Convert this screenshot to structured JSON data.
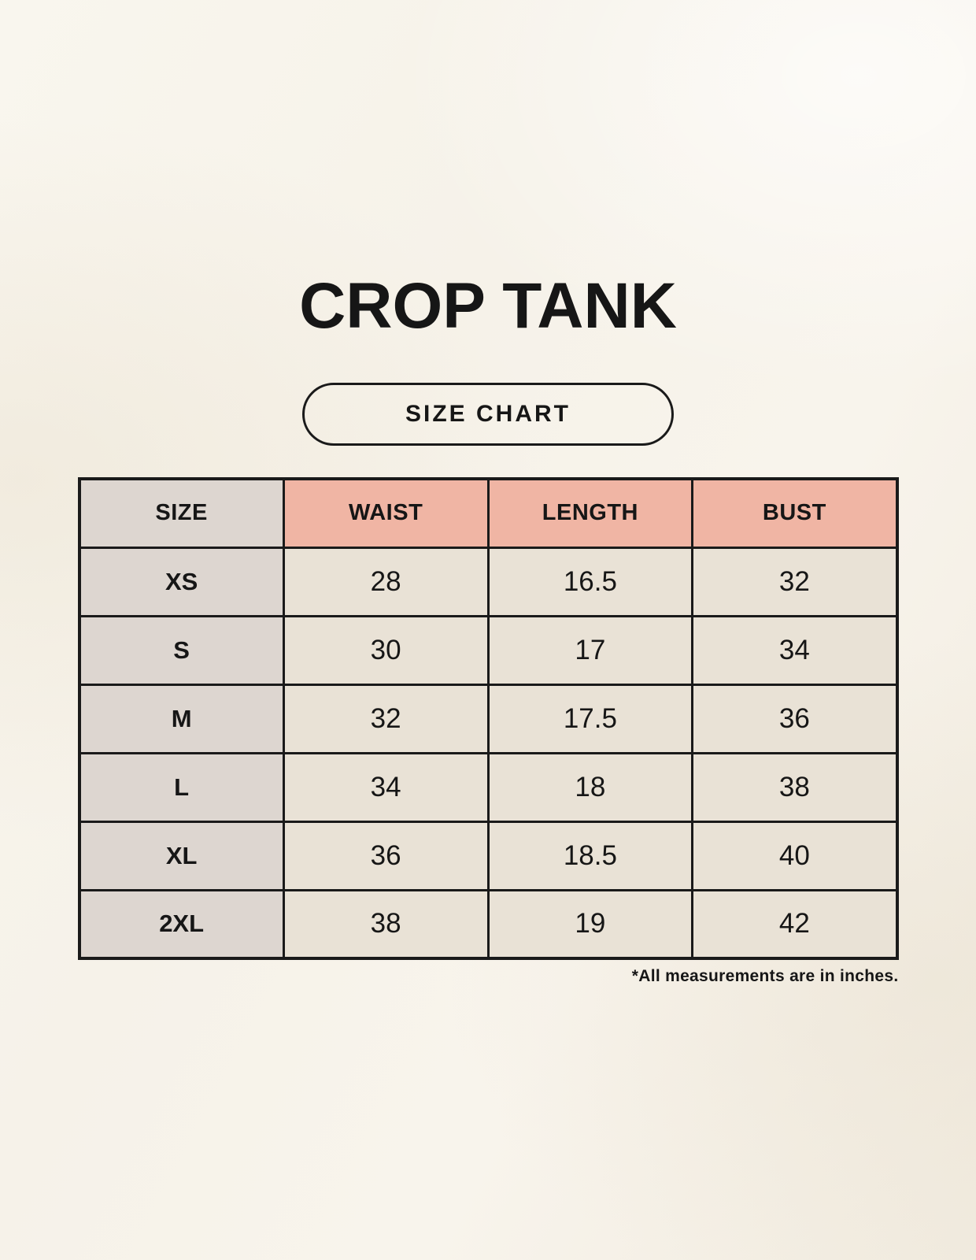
{
  "page": {
    "title": "CROP TANK",
    "badge_label": "SIZE CHART",
    "footnote": "*All measurements are in inches."
  },
  "colors": {
    "background": "#F7F3EA",
    "accent_pink": "#F0B5A4",
    "size_column_bg": "#DDD6D0",
    "cell_bg": "#E9E2D6",
    "border": "#1A1A1A",
    "text": "#161616"
  },
  "table": {
    "headers": [
      "SIZE",
      "WAIST",
      "LENGTH",
      "BUST"
    ],
    "rows": [
      [
        "XS",
        "28",
        "16.5",
        "32"
      ],
      [
        "S",
        "30",
        "17",
        "34"
      ],
      [
        "M",
        "32",
        "17.5",
        "36"
      ],
      [
        "L",
        "34",
        "18",
        "38"
      ],
      [
        "XL",
        "36",
        "18.5",
        "40"
      ],
      [
        "2XL",
        "38",
        "19",
        "42"
      ]
    ]
  }
}
